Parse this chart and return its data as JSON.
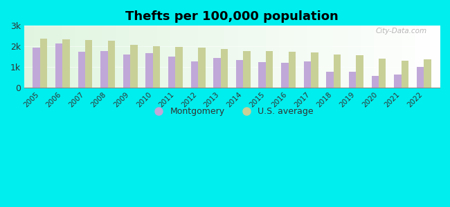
{
  "title": "Thefts per 100,000 population",
  "years": [
    2005,
    2006,
    2007,
    2008,
    2009,
    2010,
    2011,
    2012,
    2013,
    2014,
    2015,
    2016,
    2017,
    2018,
    2019,
    2020,
    2021,
    2022
  ],
  "montgomery": [
    1950,
    2150,
    1750,
    1780,
    1620,
    1680,
    1520,
    1270,
    1450,
    1340,
    1250,
    1210,
    1290,
    760,
    760,
    590,
    640,
    1020
  ],
  "us_average": [
    2380,
    2330,
    2300,
    2280,
    2080,
    2000,
    1980,
    1940,
    1870,
    1790,
    1790,
    1760,
    1720,
    1600,
    1580,
    1400,
    1310,
    1380
  ],
  "montgomery_color": "#c0a8d8",
  "us_avg_color": "#c8d098",
  "outer_bg": "#00eeee",
  "plot_bg_left": "#c8eecc",
  "plot_bg_right": "#f0f8f0",
  "ylim": [
    0,
    3000
  ],
  "yticks": [
    0,
    1000,
    2000,
    3000
  ],
  "ytick_labels": [
    "0",
    "1k",
    "2k",
    "3k"
  ],
  "bar_width": 0.32,
  "legend_montgomery": "Montgomery",
  "legend_us": "U.S. average",
  "watermark": "City-Data.com"
}
